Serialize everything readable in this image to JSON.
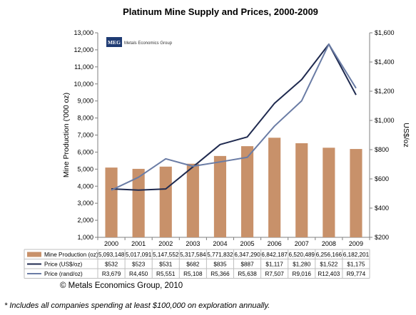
{
  "chart_data": {
    "type": "bar",
    "title": "Platinum Mine Supply and Prices, 2000-2009",
    "ylabel": "Mine Production ('000 oz)",
    "y2label": "US$/oz",
    "ylim": [
      1000,
      13000
    ],
    "y2lim": [
      200,
      1600
    ],
    "yticks": [
      "1,000",
      "2,000",
      "3,000",
      "4,000",
      "5,000",
      "6,000",
      "7,000",
      "8,000",
      "9,000",
      "10,000",
      "11,000",
      "12,000",
      "13,000"
    ],
    "y2ticks": [
      "$200",
      "$400",
      "$600",
      "$800",
      "$1,000",
      "$1,200",
      "$1,400",
      "$1,600"
    ],
    "categories": [
      "2000",
      "2001",
      "2002",
      "2003",
      "2004",
      "2005",
      "2006",
      "2007",
      "2008",
      "2009"
    ],
    "series": [
      {
        "name": "Mine Production (oz)",
        "type": "bar",
        "axis": "left",
        "color": "#C8916A",
        "values": [
          5093148,
          5017091,
          5147552,
          5317584,
          5771832,
          6347290,
          6842187,
          6520489,
          6256166,
          6182201
        ],
        "labels": [
          "5,093,148",
          "5,017,091",
          "5,147,552",
          "5,317,584",
          "5,771,832",
          "6,347,290",
          "6,842,187",
          "6,520,489",
          "6,256,166",
          "6,182,201"
        ]
      },
      {
        "name": "Price (US$/oz)",
        "type": "line",
        "axis": "right",
        "color": "#1F2A4F",
        "values": [
          532,
          523,
          531,
          682,
          835,
          887,
          1117,
          1280,
          1522,
          1175
        ],
        "labels": [
          "$532",
          "$523",
          "$531",
          "$682",
          "$835",
          "$887",
          "$1,117",
          "$1,280",
          "$1,522",
          "$1,175"
        ]
      },
      {
        "name": "Price (rand/oz)",
        "type": "line",
        "axis": "hidden",
        "color": "#6A7CA5",
        "values": [
          3679,
          4450,
          5551,
          5108,
          5366,
          5638,
          7507,
          9016,
          12403,
          9774
        ],
        "labels": [
          "R3,679",
          "R4,450",
          "R5,551",
          "R5,108",
          "R5,366",
          "R5,638",
          "R7,507",
          "R9,016",
          "R12,403",
          "R9,774"
        ]
      }
    ],
    "grid": false,
    "legend": "data-table-below"
  },
  "logo": {
    "abbr": "MEG",
    "text": "Metals Economics Group",
    "color": "#1F3B73"
  },
  "copyright": "© Metals Economics Group, 2010",
  "footnote": "* Includes all companies spending at least $100,000 on exploration annually."
}
